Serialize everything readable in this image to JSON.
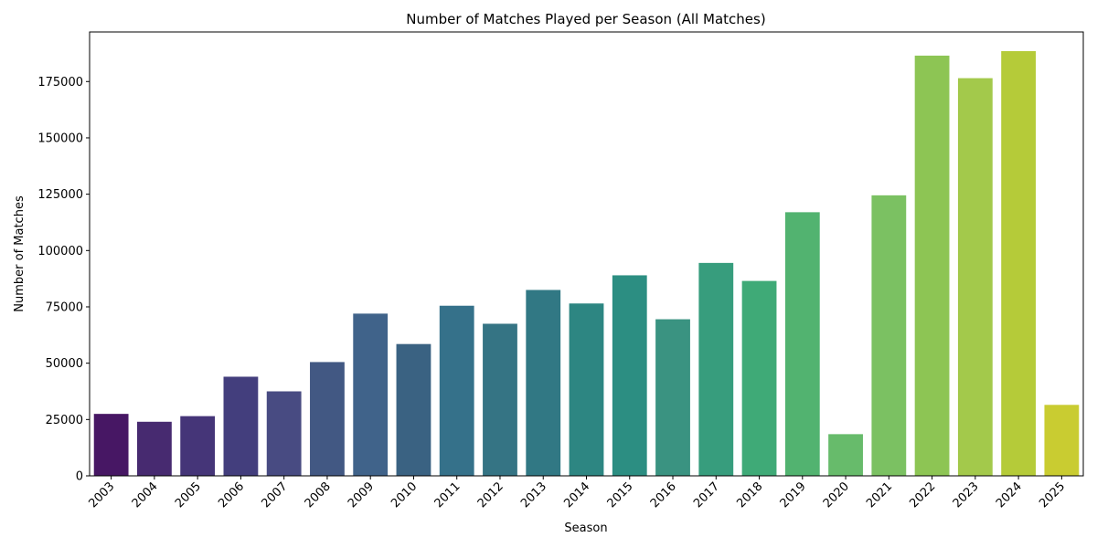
{
  "chart_data": {
    "type": "bar",
    "title": "Number of Matches Played per Season (All Matches)",
    "xlabel": "Season",
    "ylabel": "Number of Matches",
    "categories": [
      "2003",
      "2004",
      "2005",
      "2006",
      "2007",
      "2008",
      "2009",
      "2010",
      "2011",
      "2012",
      "2013",
      "2014",
      "2015",
      "2016",
      "2017",
      "2018",
      "2019",
      "2020",
      "2021",
      "2022",
      "2023",
      "2024",
      "2025"
    ],
    "values": [
      27500,
      24000,
      26500,
      44000,
      37500,
      50500,
      72000,
      58500,
      75500,
      67500,
      82500,
      76500,
      89000,
      69500,
      94500,
      86500,
      117000,
      18500,
      124500,
      186500,
      176500,
      188500,
      31500
    ],
    "ylim": [
      0,
      197000
    ],
    "yticks": [
      0,
      25000,
      50000,
      75000,
      100000,
      125000,
      150000,
      175000
    ],
    "colormap": "viridis",
    "bar_colors": [
      "#471764",
      "#472a70",
      "#453578",
      "#433e7d",
      "#484b82",
      "#425883",
      "#40638a",
      "#3a6282",
      "#35718a",
      "#357484",
      "#317884",
      "#2d8682",
      "#2c8e82",
      "#3a9381",
      "#379d7d",
      "#3faa77",
      "#52b370",
      "#67bb6b",
      "#7bc162",
      "#8dc554",
      "#a3c94b",
      "#b5cb39",
      "#c9cc31"
    ],
    "grid": false,
    "legend": "none"
  }
}
